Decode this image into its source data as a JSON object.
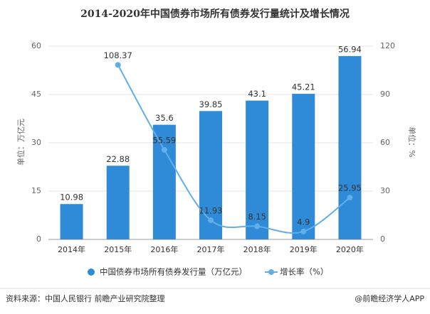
{
  "chart_data": {
    "type": "bar",
    "title": "2014-2020年中国债券市场所有债券发行量统计及增长情况",
    "y_label": "单位：万亿元",
    "y2_label": "单位：%",
    "categories": [
      "2014年",
      "2015年",
      "2016年",
      "2017年",
      "2018年",
      "2019年",
      "2020年"
    ],
    "series": [
      {
        "name": "中国债券市场所有债券发行量（万亿元）",
        "type": "bar",
        "color": "#2f8ad8",
        "values": [
          10.98,
          22.88,
          35.6,
          39.85,
          43.1,
          45.21,
          56.94
        ]
      },
      {
        "name": "增长率（%）",
        "type": "line",
        "axis": "y2",
        "smooth": true,
        "color": "#62aee6",
        "values": [
          null,
          108.37,
          55.59,
          11.93,
          8.15,
          4.9,
          25.95
        ]
      }
    ],
    "ylim": [
      0,
      60
    ],
    "yticks": [
      0,
      15,
      30,
      45,
      60
    ],
    "y2lim": [
      0,
      120
    ],
    "y2ticks": [
      0,
      30,
      60,
      90,
      120
    ],
    "grid": true,
    "legend": "bottom",
    "source": "资料来源：中国人民银行 前瞻产业研究院整理",
    "credit": "@前瞻经济学人APP"
  }
}
